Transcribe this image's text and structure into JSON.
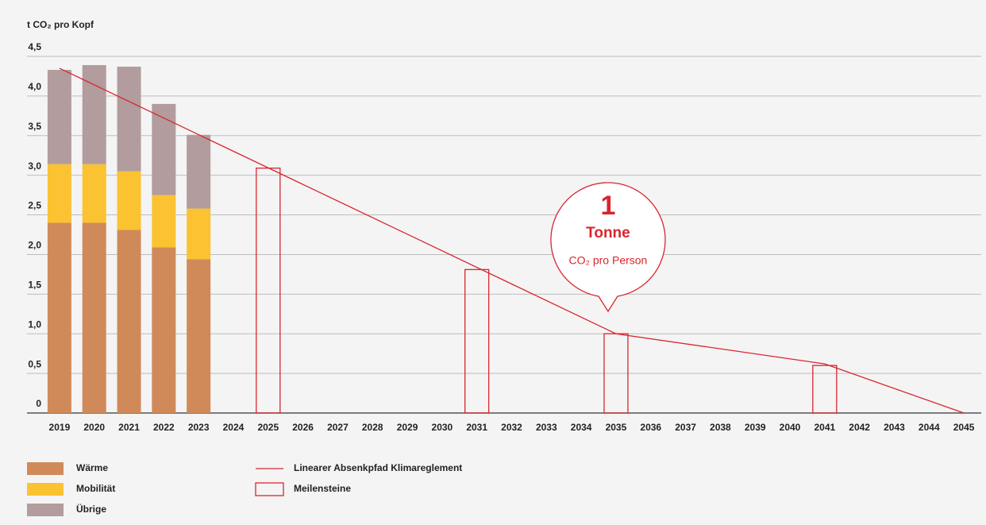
{
  "chart_data": {
    "type": "bar",
    "y_label": "t CO₂ pro Kopf",
    "categories": [
      "2019",
      "2020",
      "2021",
      "2022",
      "2023",
      "2024",
      "2025",
      "2026",
      "2027",
      "2028",
      "2029",
      "2030",
      "2031",
      "2032",
      "2033",
      "2034",
      "2035",
      "2036",
      "2037",
      "2038",
      "2039",
      "2040",
      "2041",
      "2042",
      "2043",
      "2044",
      "2045"
    ],
    "ylim": [
      0,
      4.5
    ],
    "yticks": [
      0,
      {
        "value": 0.5,
        "label": "0,5"
      },
      {
        "value": 1,
        "label": "1,0"
      },
      {
        "value": 1.5,
        "label": "1,5"
      },
      {
        "value": 2,
        "label": "2,0"
      },
      {
        "value": 2.5,
        "label": "2,5"
      },
      {
        "value": 3,
        "label": "3,0"
      },
      {
        "value": 3.5,
        "label": "3,5"
      },
      {
        "value": 4,
        "label": "4,0"
      },
      {
        "value": 4.5,
        "label": "4,5"
      }
    ],
    "grid": true,
    "stacked": true,
    "series": [
      {
        "name": "Wärme",
        "type": "bar",
        "color": "#d08a5a",
        "values": [
          2.4,
          2.4,
          2.31,
          2.09,
          1.94,
          null,
          null,
          null,
          null,
          null,
          null,
          null,
          null,
          null,
          null,
          null,
          null,
          null,
          null,
          null,
          null,
          null,
          null,
          null,
          null,
          null,
          null
        ]
      },
      {
        "name": "Mobilität",
        "type": "bar",
        "color": "#fbc232",
        "values": [
          0.74,
          0.74,
          0.74,
          0.66,
          0.64,
          null,
          null,
          null,
          null,
          null,
          null,
          null,
          null,
          null,
          null,
          null,
          null,
          null,
          null,
          null,
          null,
          null,
          null,
          null,
          null,
          null,
          null
        ]
      },
      {
        "name": "Übrige",
        "type": "bar",
        "color": "#b29c9d",
        "values": [
          1.19,
          1.25,
          1.32,
          1.15,
          0.93,
          null,
          null,
          null,
          null,
          null,
          null,
          null,
          null,
          null,
          null,
          null,
          null,
          null,
          null,
          null,
          null,
          null,
          null,
          null,
          null,
          null,
          null
        ]
      },
      {
        "name": "Meilensteine",
        "type": "outline",
        "color": "#d8262e",
        "values": [
          null,
          null,
          null,
          null,
          null,
          null,
          3.09,
          null,
          null,
          null,
          null,
          null,
          1.81,
          null,
          null,
          null,
          1.0,
          null,
          null,
          null,
          null,
          null,
          0.6,
          null,
          null,
          null,
          null
        ]
      },
      {
        "name": "Linearer Absenkpfad Klimareglement",
        "type": "line",
        "color": "#d8262e",
        "x": [
          "2019",
          "2035",
          "2041",
          "2045"
        ],
        "values": [
          4.35,
          1.0,
          0.62,
          0
        ]
      }
    ],
    "annotation": {
      "value": "1",
      "unit": "Tonne",
      "text": "CO₂ pro Person",
      "x": "2035"
    }
  }
}
